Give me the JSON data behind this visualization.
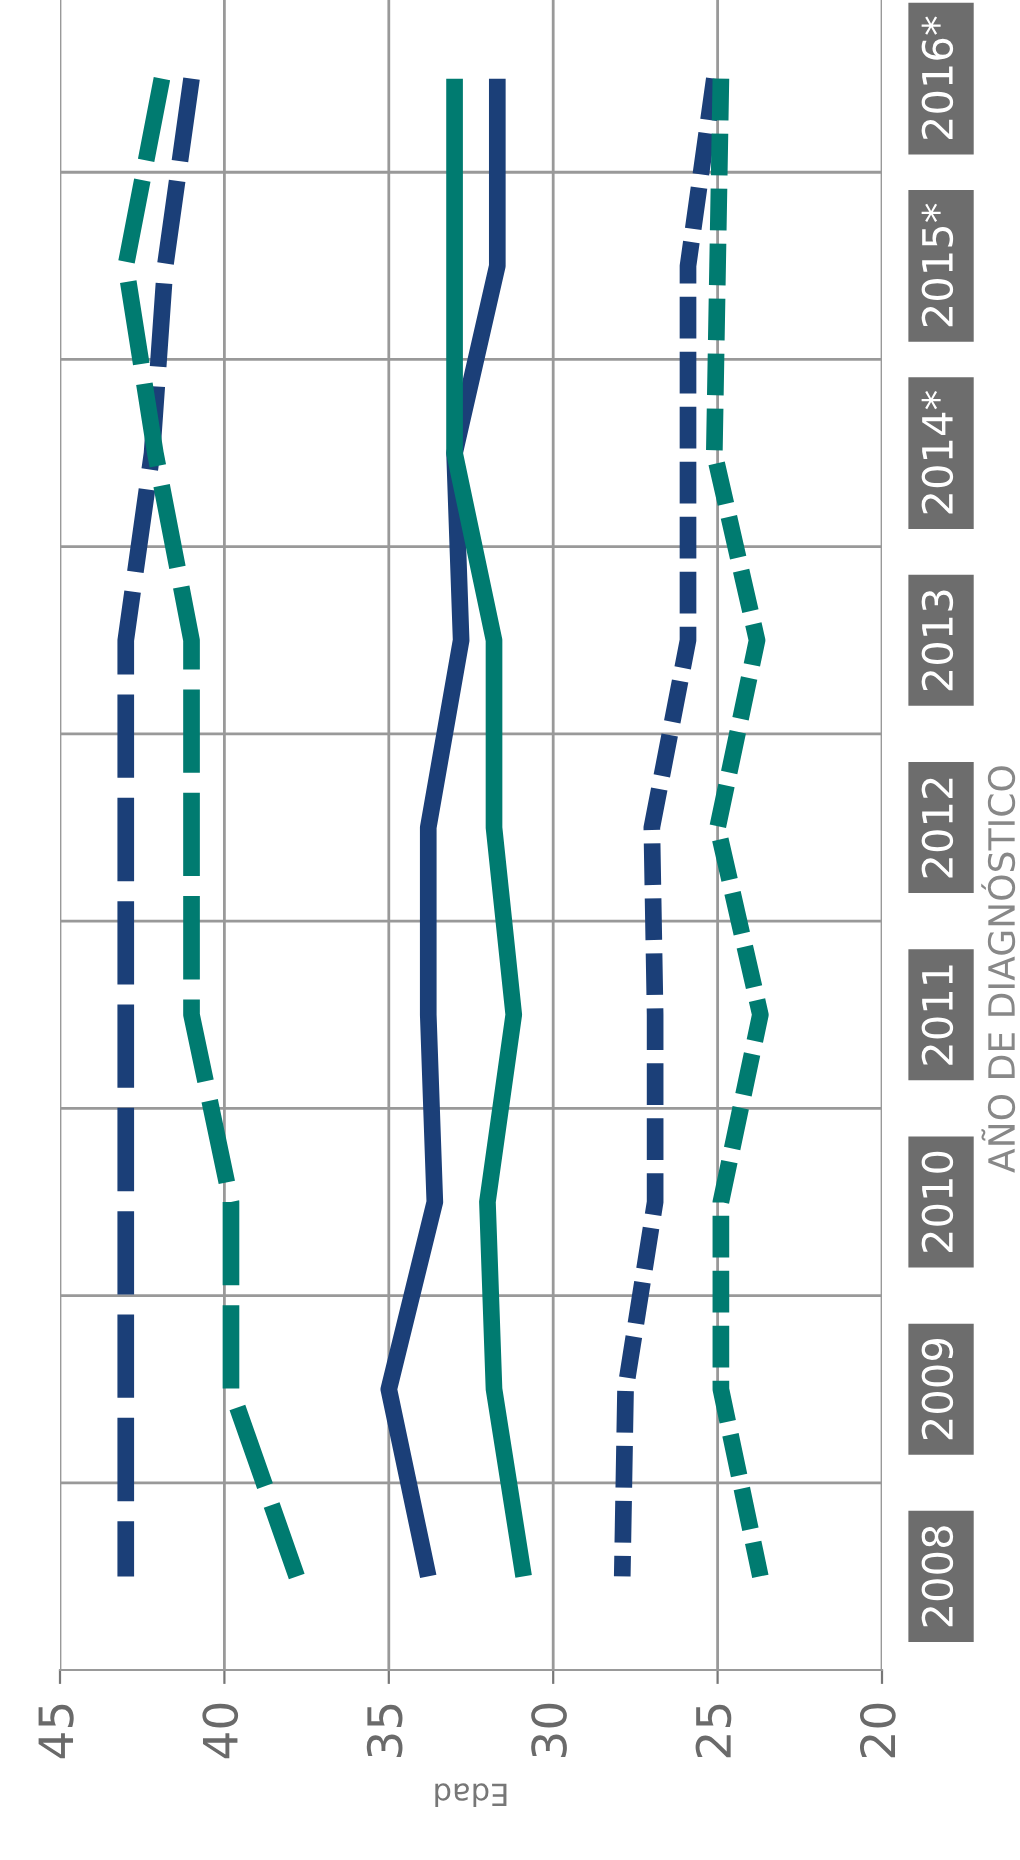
{
  "chart_data": {
    "type": "line",
    "orientation": "horizontal",
    "xlabel": "Edad",
    "ylabel": "AÑO DE DIAGNÓSTICO",
    "categories": [
      "2016*",
      "2015*",
      "2014*",
      "2013",
      "2012",
      "2011",
      "2010",
      "2009",
      "2008"
    ],
    "xlim": [
      45,
      20
    ],
    "xticks": [
      45,
      40,
      35,
      30,
      25,
      20
    ],
    "grid": true,
    "series": [
      {
        "color": "#1b3f78",
        "line_style": "dashed",
        "values": [
          41.0,
          41.8,
          42.2,
          43.0,
          43.0,
          43.0,
          43.0,
          43.0,
          43.0
        ]
      },
      {
        "color": "#007b70",
        "line_style": "dashed",
        "values": [
          41.9,
          43.0,
          42.1,
          41.0,
          41.0,
          41.0,
          39.8,
          39.8,
          37.8
        ]
      },
      {
        "color": "#1b3f78",
        "line_style": "solid",
        "values": [
          31.7,
          31.7,
          33.0,
          32.8,
          33.8,
          33.8,
          33.6,
          35.0,
          33.8
        ]
      },
      {
        "color": "#007b70",
        "line_style": "solid",
        "values": [
          33.0,
          33.0,
          33.0,
          31.8,
          31.8,
          31.2,
          32.0,
          31.8,
          30.9
        ]
      },
      {
        "color": "#1b3f78",
        "line_style": "dotted",
        "values": [
          25.1,
          25.9,
          25.9,
          25.9,
          27.0,
          26.9,
          26.9,
          27.8,
          27.9
        ]
      },
      {
        "color": "#007b70",
        "line_style": "dotted",
        "values": [
          24.9,
          25.0,
          25.1,
          23.8,
          25.0,
          23.7,
          24.9,
          24.9,
          23.7
        ]
      }
    ]
  }
}
